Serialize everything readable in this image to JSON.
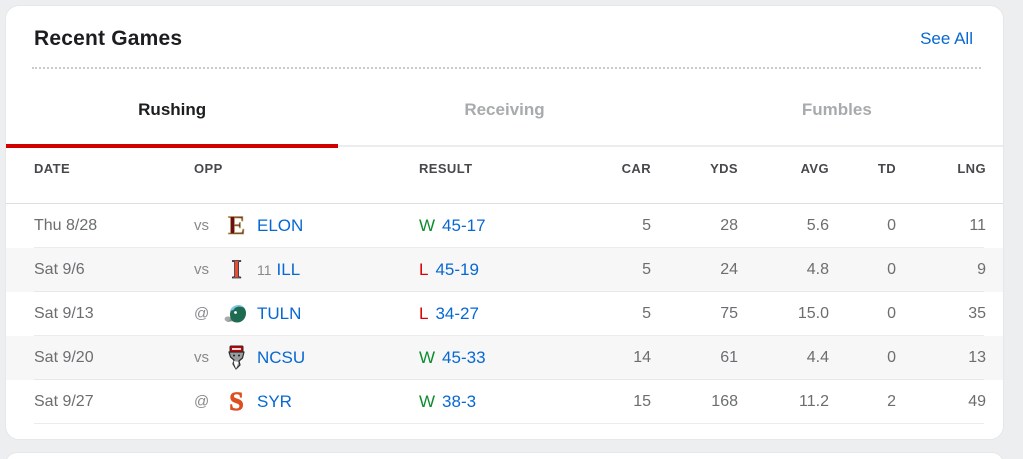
{
  "card": {
    "title": "Recent Games",
    "see_all": "See All",
    "tabs": [
      {
        "label": "Rushing",
        "active": true
      },
      {
        "label": "Receiving",
        "active": false
      },
      {
        "label": "Fumbles",
        "active": false
      }
    ],
    "columns": [
      "DATE",
      "OPP",
      "RESULT",
      "CAR",
      "YDS",
      "AVG",
      "TD",
      "LNG"
    ],
    "rows": [
      {
        "date": "Thu 8/28",
        "home_away": "vs",
        "rank": "",
        "team": "ELON",
        "logo": {
          "type": "letter",
          "letter": "E",
          "color": "#6e0b15",
          "outline": "#b3a369"
        },
        "wl": "W",
        "score": "45-17",
        "car": "5",
        "yds": "28",
        "avg": "5.6",
        "td": "0",
        "lng": "11"
      },
      {
        "date": "Sat 9/6",
        "home_away": "vs",
        "rank": "11",
        "team": "ILL",
        "logo": {
          "type": "letter",
          "letter": "I",
          "color": "#e8502a",
          "outline": "#1b2f52"
        },
        "wl": "L",
        "score": "45-19",
        "car": "5",
        "yds": "24",
        "avg": "4.8",
        "td": "0",
        "lng": "9"
      },
      {
        "date": "Sat 9/13",
        "home_away": "@",
        "rank": "",
        "team": "TULN",
        "logo": {
          "type": "tulane"
        },
        "wl": "L",
        "score": "34-27",
        "car": "5",
        "yds": "75",
        "avg": "15.0",
        "td": "0",
        "lng": "35"
      },
      {
        "date": "Sat 9/20",
        "home_away": "vs",
        "rank": "",
        "team": "NCSU",
        "logo": {
          "type": "ncsu"
        },
        "wl": "W",
        "score": "45-33",
        "car": "14",
        "yds": "61",
        "avg": "4.4",
        "td": "0",
        "lng": "13"
      },
      {
        "date": "Sat 9/27",
        "home_away": "@",
        "rank": "",
        "team": "SYR",
        "logo": {
          "type": "letter",
          "letter": "S",
          "color": "#dd4f1f",
          "outline": "#dd4f1f"
        },
        "wl": "W",
        "score": "38-3",
        "car": "15",
        "yds": "168",
        "avg": "11.2",
        "td": "2",
        "lng": "49"
      }
    ]
  },
  "colors": {
    "page_bg": "#eceef0",
    "card_bg": "#ffffff",
    "accent_red": "#d00000",
    "link_blue": "#0668d2",
    "win_green": "#0d8c2f",
    "loss_red": "#dc0000",
    "row_alt": "#f7f7f7",
    "text_dark": "#1b1d1f",
    "text_gray": "#6b6d6f",
    "text_light": "#87898b",
    "tab_inactive": "#a8abad",
    "header_text": "#47484b"
  }
}
